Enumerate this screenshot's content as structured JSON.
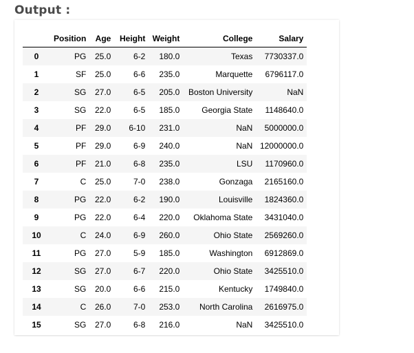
{
  "heading": "Output :",
  "table": {
    "columns": [
      "",
      "Position",
      "Age",
      "Height",
      "Weight",
      "College",
      "Salary"
    ],
    "rows": [
      {
        "index": "0",
        "cells": [
          "PG",
          "25.0",
          "6-2",
          "180.0",
          "Texas",
          "7730337.0"
        ]
      },
      {
        "index": "1",
        "cells": [
          "SF",
          "25.0",
          "6-6",
          "235.0",
          "Marquette",
          "6796117.0"
        ]
      },
      {
        "index": "2",
        "cells": [
          "SG",
          "27.0",
          "6-5",
          "205.0",
          "Boston University",
          "NaN"
        ]
      },
      {
        "index": "3",
        "cells": [
          "SG",
          "22.0",
          "6-5",
          "185.0",
          "Georgia State",
          "1148640.0"
        ]
      },
      {
        "index": "4",
        "cells": [
          "PF",
          "29.0",
          "6-10",
          "231.0",
          "NaN",
          "5000000.0"
        ]
      },
      {
        "index": "5",
        "cells": [
          "PF",
          "29.0",
          "6-9",
          "240.0",
          "NaN",
          "12000000.0"
        ]
      },
      {
        "index": "6",
        "cells": [
          "PF",
          "21.0",
          "6-8",
          "235.0",
          "LSU",
          "1170960.0"
        ]
      },
      {
        "index": "7",
        "cells": [
          "C",
          "25.0",
          "7-0",
          "238.0",
          "Gonzaga",
          "2165160.0"
        ]
      },
      {
        "index": "8",
        "cells": [
          "PG",
          "22.0",
          "6-2",
          "190.0",
          "Louisville",
          "1824360.0"
        ]
      },
      {
        "index": "9",
        "cells": [
          "PG",
          "22.0",
          "6-4",
          "220.0",
          "Oklahoma State",
          "3431040.0"
        ]
      },
      {
        "index": "10",
        "cells": [
          "C",
          "24.0",
          "6-9",
          "260.0",
          "Ohio State",
          "2569260.0"
        ]
      },
      {
        "index": "11",
        "cells": [
          "PG",
          "27.0",
          "5-9",
          "185.0",
          "Washington",
          "6912869.0"
        ]
      },
      {
        "index": "12",
        "cells": [
          "SG",
          "27.0",
          "6-7",
          "220.0",
          "Ohio State",
          "3425510.0"
        ]
      },
      {
        "index": "13",
        "cells": [
          "SG",
          "20.0",
          "6-6",
          "215.0",
          "Kentucky",
          "1749840.0"
        ]
      },
      {
        "index": "14",
        "cells": [
          "C",
          "26.0",
          "7-0",
          "253.0",
          "North Carolina",
          "2616975.0"
        ]
      },
      {
        "index": "15",
        "cells": [
          "SG",
          "27.0",
          "6-8",
          "216.0",
          "NaN",
          "3425510.0"
        ]
      }
    ]
  }
}
